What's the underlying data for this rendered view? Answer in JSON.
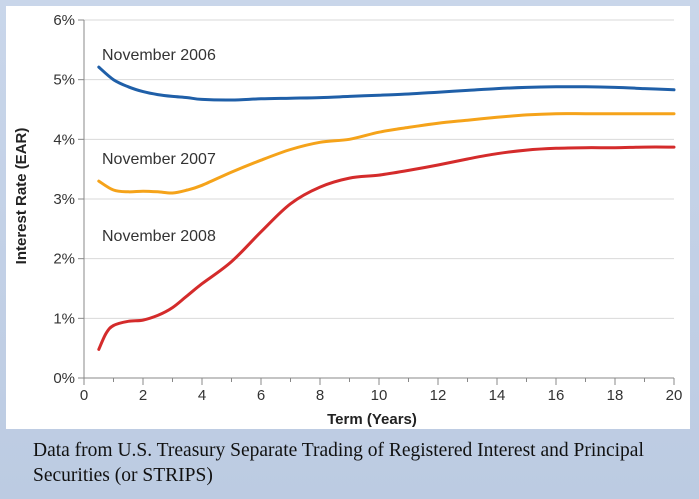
{
  "caption": "Data from U.S. Treasury Separate Trading of Registered Interest and Principal Securities (or STRIPS)",
  "chart_data": {
    "type": "line",
    "title": "",
    "xlabel": "Term (Years)",
    "ylabel": "Interest Rate (EAR)",
    "xlim": [
      0,
      20
    ],
    "ylim": [
      0,
      6
    ],
    "x_ticks": [
      "0",
      "2",
      "4",
      "6",
      "8",
      "10",
      "12",
      "14",
      "16",
      "18",
      "20"
    ],
    "y_ticks": [
      "0%",
      "1%",
      "2%",
      "3%",
      "4%",
      "5%",
      "6%"
    ],
    "grid": "horizontal",
    "series": [
      {
        "name": "November 2006",
        "color": "#1f5fa8",
        "x": [
          0.5,
          1,
          1.5,
          2,
          2.5,
          3,
          3.5,
          4,
          5,
          6,
          7,
          8,
          9,
          10,
          11,
          12,
          13,
          14,
          15,
          16,
          17,
          18,
          19,
          20
        ],
        "y": [
          5.21,
          5.0,
          4.88,
          4.8,
          4.75,
          4.72,
          4.7,
          4.67,
          4.66,
          4.68,
          4.69,
          4.7,
          4.72,
          4.74,
          4.76,
          4.79,
          4.82,
          4.85,
          4.87,
          4.88,
          4.88,
          4.87,
          4.85,
          4.83
        ]
      },
      {
        "name": "November 2007",
        "color": "#f5a31a",
        "x": [
          0.5,
          1,
          1.5,
          2,
          2.5,
          3,
          3.5,
          4,
          5,
          6,
          7,
          8,
          9,
          10,
          11,
          12,
          13,
          14,
          15,
          16,
          17,
          18,
          19,
          20
        ],
        "y": [
          3.3,
          3.15,
          3.12,
          3.13,
          3.12,
          3.1,
          3.15,
          3.23,
          3.45,
          3.65,
          3.83,
          3.95,
          4.0,
          4.12,
          4.2,
          4.27,
          4.32,
          4.37,
          4.41,
          4.43,
          4.43,
          4.43,
          4.43,
          4.43
        ]
      },
      {
        "name": "November 2008",
        "color": "#d42b2b",
        "x": [
          0.5,
          0.75,
          1,
          1.5,
          2,
          2.5,
          3,
          3.5,
          4,
          5,
          6,
          7,
          8,
          9,
          10,
          11,
          12,
          13,
          14,
          15,
          16,
          17,
          18,
          19,
          20
        ],
        "y": [
          0.48,
          0.75,
          0.88,
          0.95,
          0.97,
          1.05,
          1.18,
          1.38,
          1.58,
          1.95,
          2.45,
          2.92,
          3.2,
          3.35,
          3.4,
          3.48,
          3.57,
          3.67,
          3.76,
          3.82,
          3.85,
          3.86,
          3.86,
          3.87,
          3.87
        ]
      }
    ]
  }
}
